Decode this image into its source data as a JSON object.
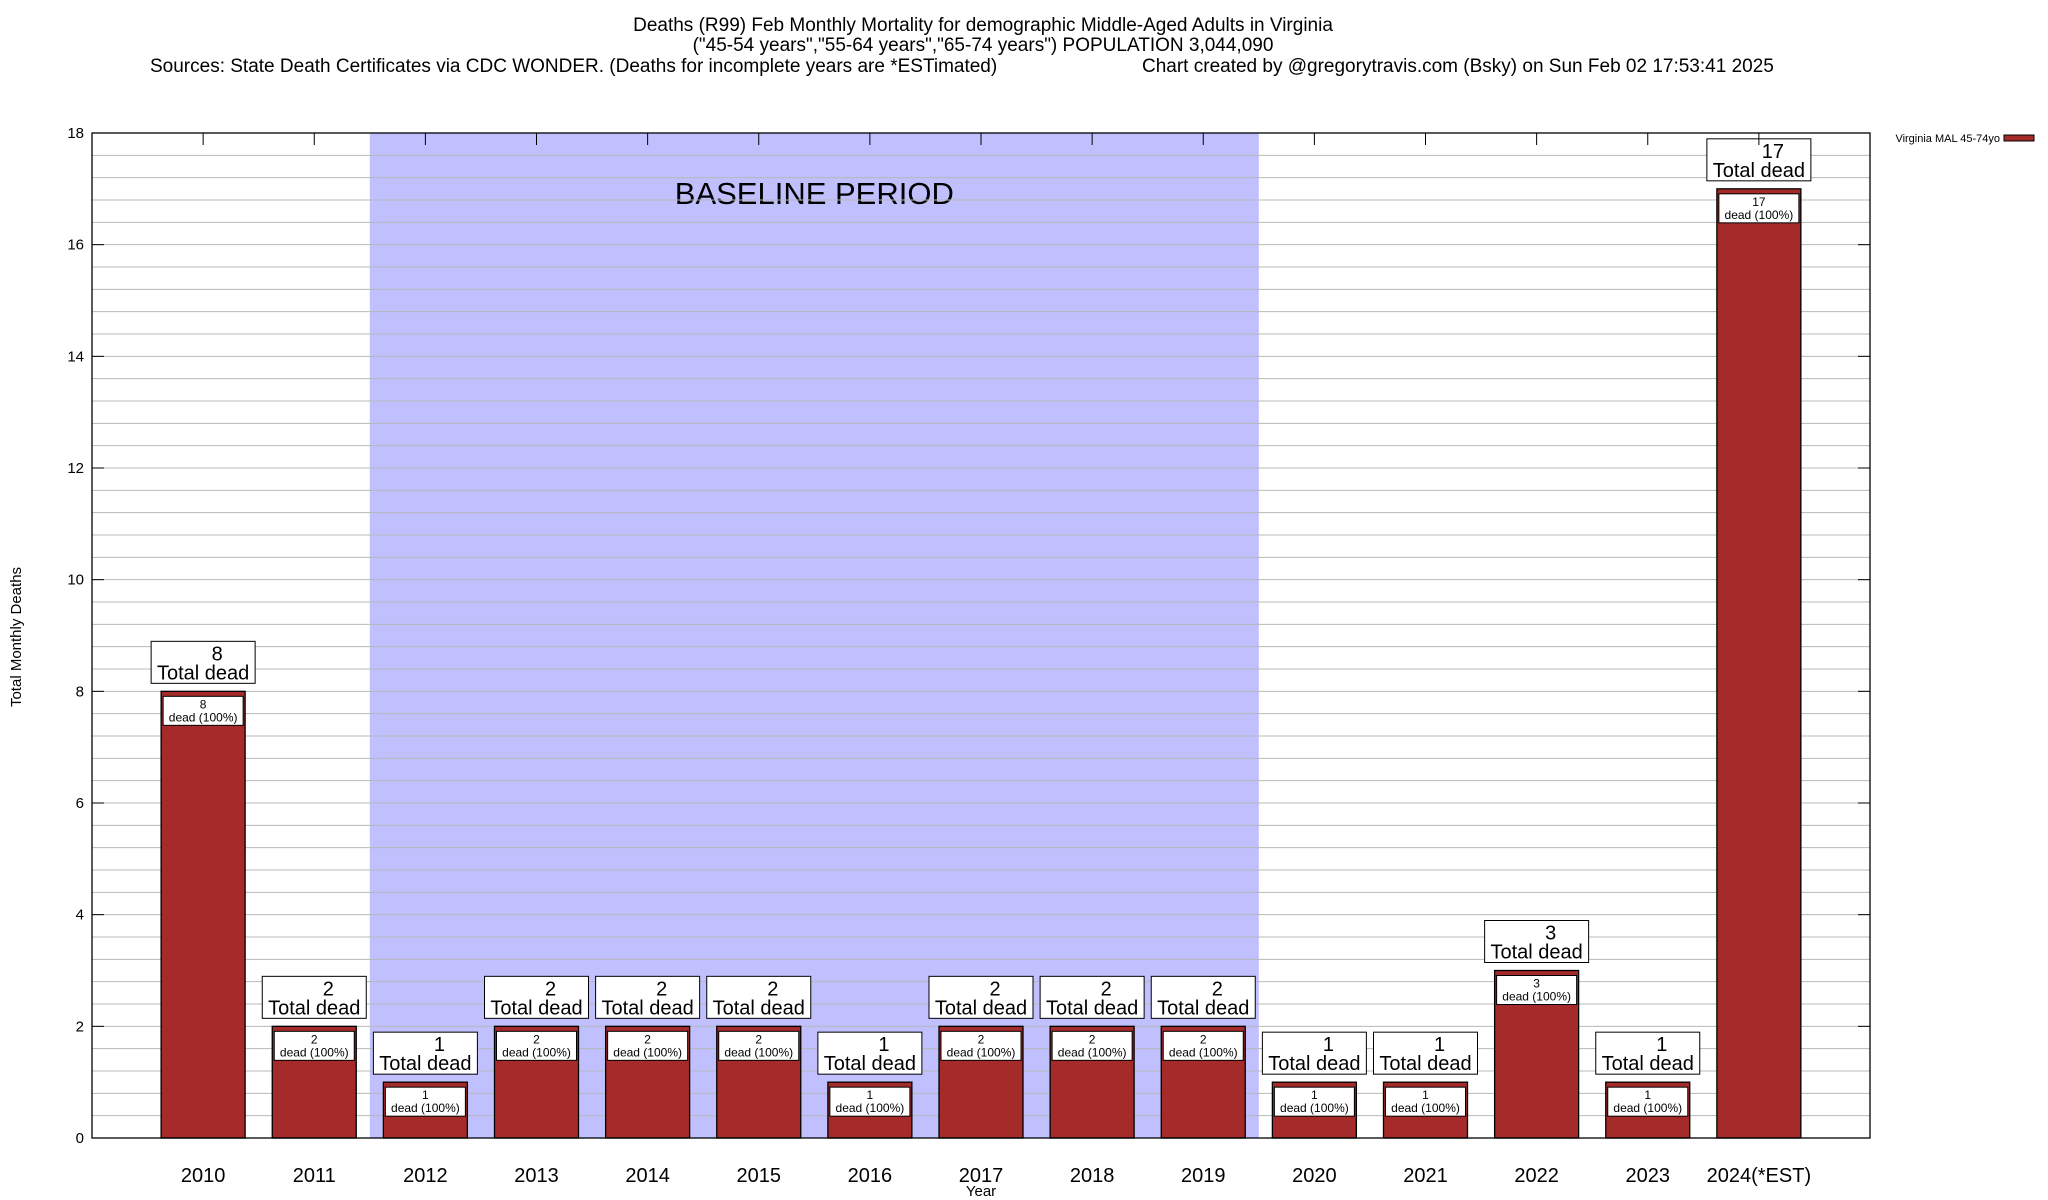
{
  "chart_data": {
    "type": "bar",
    "title_lines": [
      "Deaths (R99) Feb Monthly Mortality for demographic Middle-Aged Adults in Virginia",
      "(\"45-54 years\",\"55-64 years\",\"65-74 years\") POPULATION 3,044,090"
    ],
    "sources": "Sources: State Death Certificates via CDC WONDER. (Deaths for incomplete years are *ESTimated)",
    "credit": "Chart created by @gregorytravis.com (Bsky) on Sun Feb 02 17:53:41 2025",
    "xlabel": "Year",
    "ylabel": "Total Monthly Deaths",
    "ylim": [
      0,
      18
    ],
    "yticks": [
      0,
      2,
      4,
      6,
      8,
      10,
      12,
      14,
      16,
      18
    ],
    "minor_grid_step": 0.4,
    "grid": true,
    "legend_position": "top-right, outside",
    "categories": [
      "2010",
      "2011",
      "2012",
      "2013",
      "2014",
      "2015",
      "2016",
      "2017",
      "2018",
      "2019",
      "2020",
      "2021",
      "2022",
      "2023",
      "2024(*EST)"
    ],
    "series": [
      {
        "name": "Virginia MAL 45-74yo",
        "color": "#a52a2a",
        "values": [
          8,
          2,
          1,
          2,
          2,
          2,
          1,
          2,
          2,
          2,
          1,
          1,
          3,
          1,
          17
        ]
      }
    ],
    "total_label_suffix": "Total dead",
    "inner_label_suffix": "dead (100%)",
    "baseline": {
      "label": "BASELINE PERIOD",
      "from": "2012",
      "to": "2019",
      "color": "#c0c0ff"
    }
  }
}
